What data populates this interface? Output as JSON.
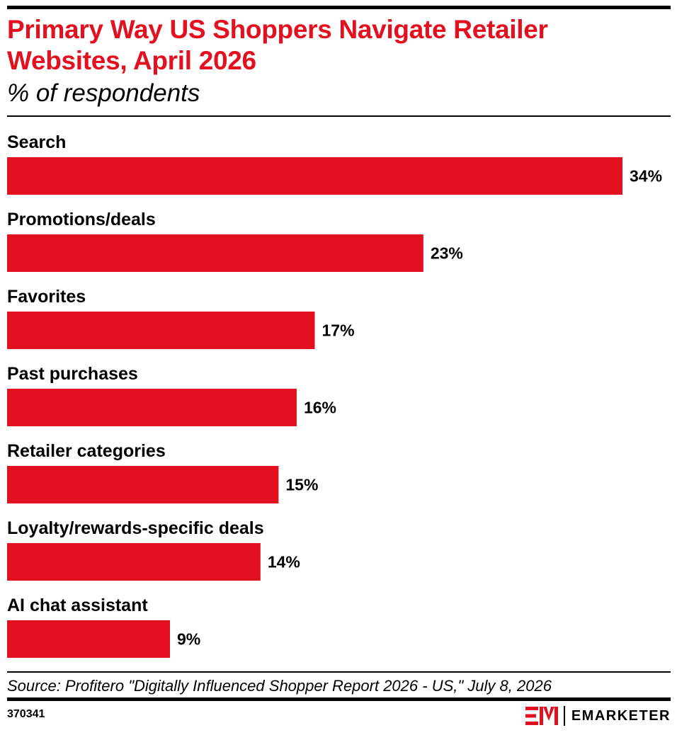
{
  "title": "Primary Way US Shoppers Navigate Retailer Websites, April 2026",
  "subtitle": "% of respondents",
  "source": "Source: Profitero \"Digitally Influenced Shopper Report 2026 - US,\" July 8, 2026",
  "chart_id": "370341",
  "brand": {
    "mark": "EM",
    "name": "EMARKETER"
  },
  "colors": {
    "bar": "#e3101f",
    "title": "#e3101f",
    "text": "#000000"
  },
  "chart_data": {
    "type": "bar",
    "orientation": "horizontal",
    "title": "Primary Way US Shoppers Navigate Retailer Websites, April 2026",
    "subtitle": "% of respondents",
    "categories": [
      "Search",
      "Promotions/deals",
      "Favorites",
      "Past purchases",
      "Retailer categories",
      "Loyalty/rewards-specific deals",
      "AI chat assistant"
    ],
    "values": [
      34,
      23,
      17,
      16,
      15,
      14,
      9
    ],
    "value_labels": [
      "34%",
      "23%",
      "17%",
      "16%",
      "15%",
      "14%",
      "9%"
    ],
    "unit": "%",
    "xlim": [
      0,
      34
    ],
    "grid": false,
    "legend": "none"
  }
}
